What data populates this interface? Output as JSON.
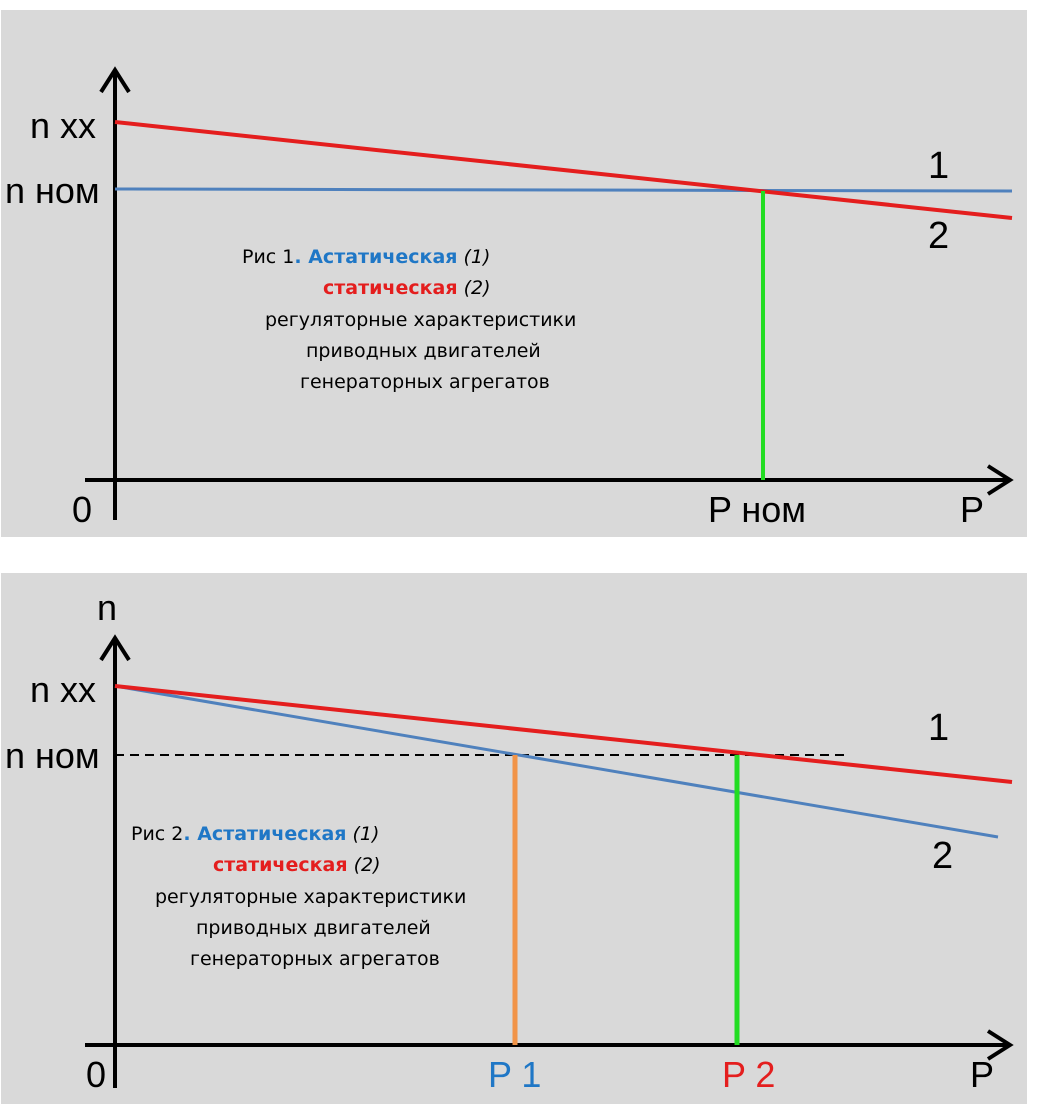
{
  "colors": {
    "panel_bg": "#d9d9d9",
    "astatic": "#4f81bd",
    "static": "#e41e1e",
    "green_line": "#22dd22",
    "orange_line": "#f19448",
    "p1_label": "#1f77c6",
    "p2_label": "#e41e1e"
  },
  "fig1": {
    "y_label_nxx": "n хх",
    "y_label_nnom": "n ном",
    "origin_label": "0",
    "x_tick_pnom": "P ном",
    "x_axis_label": "P",
    "curve_label_1": "1",
    "curve_label_2": "2",
    "caption": {
      "prefix": "Рис 1",
      "astatic": ". Астатическая",
      "astatic_num": "(1)",
      "static": "статическая",
      "static_num": "(2)",
      "line3": "регуляторные характеристики",
      "line4": "приводных двигателей",
      "line5": "генераторных агрегатов"
    }
  },
  "fig2": {
    "y_axis_label": "n",
    "y_label_nxx": "n хх",
    "y_label_nnom": "n ном",
    "origin_label": "0",
    "x_tick_p1": "P 1",
    "x_tick_p2": "P 2",
    "x_axis_label": "P",
    "curve_label_1": "1",
    "curve_label_2": "2",
    "caption": {
      "prefix": "Рис 2",
      "astatic": ". Астатическая",
      "astatic_num": "(1)",
      "static": "статическая",
      "static_num": "(2)",
      "line3": "регуляторные характеристики",
      "line4": "приводных двигателей",
      "line5": "генераторных агрегатов"
    }
  }
}
